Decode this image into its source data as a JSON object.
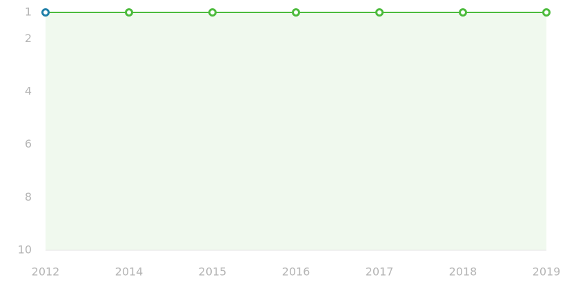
{
  "chart_data": {
    "type": "line",
    "categories": [
      "2012",
      "2014",
      "2015",
      "2016",
      "2017",
      "2018",
      "2019"
    ],
    "series": [
      {
        "color": "#4cbb3c",
        "values": [
          1,
          1,
          1,
          1,
          1,
          1,
          1
        ],
        "marker_colors": [
          "#1f7fa8",
          "#4cbb3c",
          "#4cbb3c",
          "#4cbb3c",
          "#4cbb3c",
          "#4cbb3c",
          "#4cbb3c"
        ]
      }
    ],
    "area_color": "#f0f9ee",
    "ylim": [
      1,
      10
    ],
    "y_inverted": true,
    "yticks": [
      1,
      2,
      4,
      6,
      8,
      10
    ]
  }
}
